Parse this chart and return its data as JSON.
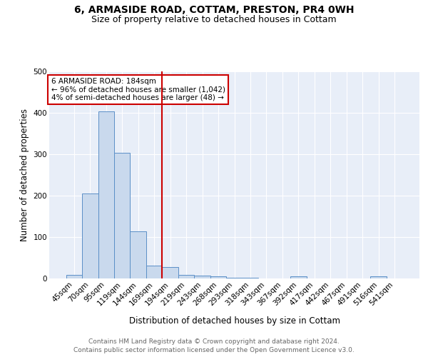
{
  "title_line1": "6, ARMASIDE ROAD, COTTAM, PRESTON, PR4 0WH",
  "title_line2": "Size of property relative to detached houses in Cottam",
  "xlabel": "Distribution of detached houses by size in Cottam",
  "ylabel": "Number of detached properties",
  "bar_labels": [
    "45sqm",
    "70sqm",
    "95sqm",
    "119sqm",
    "144sqm",
    "169sqm",
    "194sqm",
    "219sqm",
    "243sqm",
    "268sqm",
    "293sqm",
    "318sqm",
    "343sqm",
    "367sqm",
    "392sqm",
    "417sqm",
    "442sqm",
    "467sqm",
    "491sqm",
    "516sqm",
    "541sqm"
  ],
  "bar_values": [
    9,
    205,
    403,
    303,
    113,
    31,
    27,
    8,
    7,
    5,
    1,
    1,
    0,
    0,
    5,
    0,
    0,
    0,
    0,
    5,
    0
  ],
  "bar_color": "#c9d9ed",
  "bar_edge_color": "#5b8fc7",
  "background_color": "#e8eef8",
  "grid_color": "#ffffff",
  "vline_color": "#cc0000",
  "annotation_text": "6 ARMASIDE ROAD: 184sqm\n← 96% of detached houses are smaller (1,042)\n4% of semi-detached houses are larger (48) →",
  "annotation_box_color": "#ffffff",
  "annotation_box_edge": "#cc0000",
  "footer_line1": "Contains HM Land Registry data © Crown copyright and database right 2024.",
  "footer_line2": "Contains public sector information licensed under the Open Government Licence v3.0.",
  "ylim": [
    0,
    500
  ],
  "title_fontsize": 10,
  "subtitle_fontsize": 9,
  "axis_label_fontsize": 8.5,
  "tick_fontsize": 7.5,
  "footer_fontsize": 6.5
}
